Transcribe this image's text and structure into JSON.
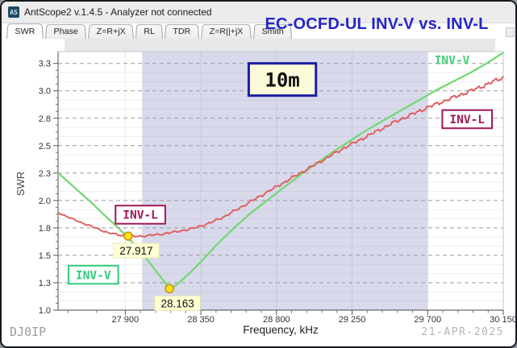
{
  "window": {
    "icon_label": "AS",
    "title": "AntScope2 v.1.4.5 - Analyzer not connected"
  },
  "tabs": [
    {
      "label": "SWR",
      "active": true
    },
    {
      "label": "Phase",
      "active": false
    },
    {
      "label": "Z=R+jX",
      "active": false
    },
    {
      "label": "RL",
      "active": false
    },
    {
      "label": "TDR",
      "active": false
    },
    {
      "label": "Z=R||+jX",
      "active": false
    },
    {
      "label": "Smith",
      "active": false
    }
  ],
  "header": {
    "title": "EC-OCFD-UL INV-V vs. INV-L"
  },
  "footer": {
    "callsign": "DJ0IP",
    "date": "21-APR-2025"
  },
  "chart_data": {
    "type": "line",
    "title": "EC-OCFD-UL INV-V vs. INV-L",
    "xlabel": "Frequency, kHz",
    "ylabel": "SWR",
    "xlim": [
      27500,
      30150
    ],
    "ylim": [
      1.0,
      3.41
    ],
    "x_ticks": [
      {
        "v": 27900,
        "label": "27 900"
      },
      {
        "v": 28350,
        "label": "28 350"
      },
      {
        "v": 28800,
        "label": "28 800"
      },
      {
        "v": 29250,
        "label": "29 250"
      },
      {
        "v": 29700,
        "label": "29 700"
      },
      {
        "v": 30150,
        "label": "30 150"
      }
    ],
    "y_ticks": [
      {
        "v": 1.0,
        "label": "1.0"
      },
      {
        "v": 1.2556,
        "label": "1.3"
      },
      {
        "v": 1.5111,
        "label": "1.5"
      },
      {
        "v": 1.7667,
        "label": "1.8"
      },
      {
        "v": 2.0222,
        "label": "2.0"
      },
      {
        "v": 2.2778,
        "label": "2.3"
      },
      {
        "v": 2.5333,
        "label": "2.5"
      },
      {
        "v": 2.7889,
        "label": "2.8"
      },
      {
        "v": 3.0444,
        "label": "3.0"
      },
      {
        "v": 3.3,
        "label": "3.3"
      }
    ],
    "band": {
      "from": 28000,
      "to": 29700,
      "label": "10m"
    },
    "series": [
      {
        "name": "INV-V",
        "style": "smooth",
        "points": [
          [
            27500,
            2.28
          ],
          [
            27600,
            2.14
          ],
          [
            27700,
            2.0
          ],
          [
            27800,
            1.85
          ],
          [
            27850,
            1.78
          ],
          [
            27900,
            1.7
          ],
          [
            27950,
            1.62
          ],
          [
            28000,
            1.53
          ],
          [
            28050,
            1.43
          ],
          [
            28100,
            1.33
          ],
          [
            28140,
            1.25
          ],
          [
            28163,
            1.2
          ],
          [
            28190,
            1.22
          ],
          [
            28230,
            1.27
          ],
          [
            28280,
            1.34
          ],
          [
            28350,
            1.45
          ],
          [
            28450,
            1.62
          ],
          [
            28550,
            1.77
          ],
          [
            28650,
            1.91
          ],
          [
            28750,
            2.03
          ],
          [
            28850,
            2.15
          ],
          [
            28950,
            2.27
          ],
          [
            29050,
            2.38
          ],
          [
            29150,
            2.49
          ],
          [
            29250,
            2.59
          ],
          [
            29350,
            2.69
          ],
          [
            29450,
            2.78
          ],
          [
            29550,
            2.87
          ],
          [
            29650,
            2.96
          ],
          [
            29750,
            3.05
          ],
          [
            29850,
            3.13
          ],
          [
            29950,
            3.21
          ],
          [
            30050,
            3.3
          ],
          [
            30150,
            3.4
          ]
        ]
      },
      {
        "name": "INV-L",
        "style": "noisy",
        "points": [
          [
            27500,
            1.91
          ],
          [
            27600,
            1.84
          ],
          [
            27700,
            1.78
          ],
          [
            27800,
            1.72
          ],
          [
            27900,
            1.69
          ],
          [
            27917,
            1.685
          ],
          [
            28000,
            1.69
          ],
          [
            28100,
            1.705
          ],
          [
            28200,
            1.73
          ],
          [
            28300,
            1.76
          ],
          [
            28400,
            1.81
          ],
          [
            28500,
            1.88
          ],
          [
            28600,
            1.97
          ],
          [
            28700,
            2.06
          ],
          [
            28800,
            2.15
          ],
          [
            28900,
            2.24
          ],
          [
            29000,
            2.33
          ],
          [
            29100,
            2.42
          ],
          [
            29200,
            2.51
          ],
          [
            29300,
            2.59
          ],
          [
            29400,
            2.67
          ],
          [
            29500,
            2.75
          ],
          [
            29600,
            2.82
          ],
          [
            29700,
            2.89
          ],
          [
            29800,
            2.95
          ],
          [
            29900,
            3.01
          ],
          [
            30000,
            3.07
          ],
          [
            30150,
            3.17
          ]
        ]
      }
    ],
    "markers": [
      {
        "series": "INV-L",
        "freq_khz": 27917,
        "swr": 1.69,
        "label": "27.917"
      },
      {
        "series": "INV-V",
        "freq_khz": 28163,
        "swr": 1.2,
        "label": "28.163"
      }
    ],
    "annotations": [
      {
        "id": "band-label",
        "text": "10m",
        "f": 28835,
        "swr": 3.15,
        "style": "yellow-box"
      },
      {
        "id": "invl-label-left",
        "text": "INV-L",
        "f": 27990,
        "swr": 1.89,
        "style": "maroon-box"
      },
      {
        "id": "invv-label-left",
        "text": "INV-V",
        "f": 27710,
        "swr": 1.33,
        "style": "green-box"
      },
      {
        "id": "invv-label-right",
        "text": "INV-V",
        "f": 29845,
        "swr": 3.33,
        "style": "green-text"
      },
      {
        "id": "invl-label-right",
        "text": "INV-L",
        "f": 29935,
        "swr": 2.78,
        "style": "maroon-box"
      }
    ],
    "colors": {
      "inv_v": "#74d874",
      "inv_l": "#e05e5e",
      "band": "#d8daeb",
      "grid_major": "#9a9aa2",
      "marker_fill": "#ffdf1f",
      "marker_stroke": "#c98f00",
      "marker_label_bg": "#ffffd4",
      "maroon": "#a01858",
      "label_green": "#2fcc7a",
      "title_blue": "#2526c6",
      "band_label_bg": "#fbf9d8",
      "band_label_border": "#1d1d9e"
    },
    "legend_position": "on-chart-labels",
    "grid": true
  }
}
